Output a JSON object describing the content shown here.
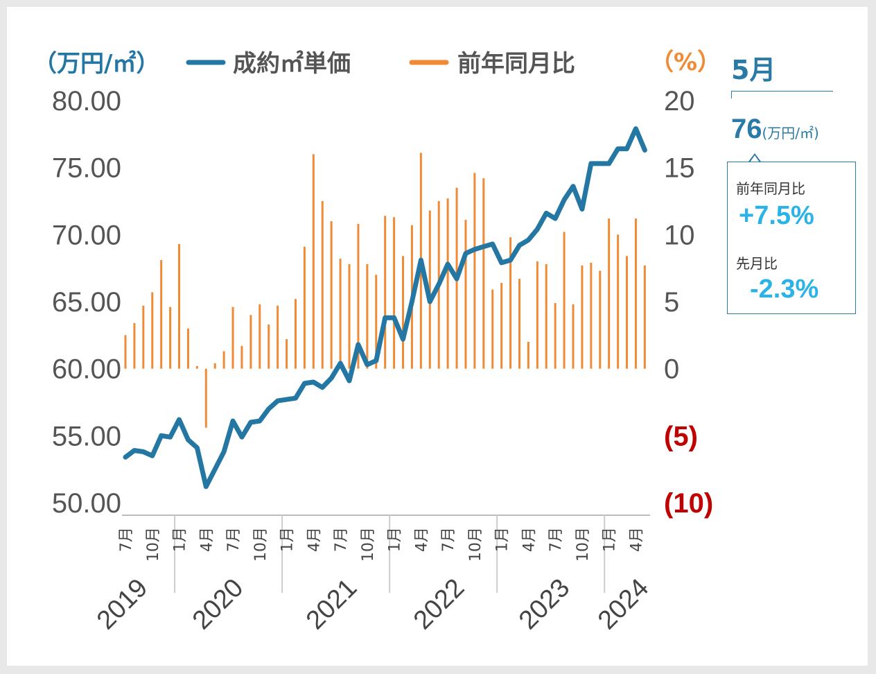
{
  "legend": {
    "left_unit": "（万円/㎡）",
    "line_label": "成約㎡単価",
    "bar_label": "前年同月比",
    "right_unit": "（%）"
  },
  "summary": {
    "month": "5月",
    "price_value": "76",
    "price_unit": "(万円/㎡)",
    "yoy_label": "前年同月比",
    "yoy_value": "+7.5%",
    "mom_label": "先月比",
    "mom_value": "-2.3%"
  },
  "colors": {
    "line": "#2577a3",
    "bar": "#f08a35",
    "negative_tick": "#c00000",
    "accent": "#2ab3e6"
  },
  "chart_data": {
    "type": "line+bar",
    "left_axis": {
      "ylim": [
        50,
        80
      ],
      "ticks": [
        "80.00",
        "75.00",
        "70.00",
        "65.00",
        "60.00",
        "55.00",
        "50.00"
      ]
    },
    "right_axis": {
      "ylim": [
        -10,
        20
      ],
      "ticks": [
        "20",
        "15",
        "10",
        "5",
        "0",
        "(5)",
        "(10)"
      ]
    },
    "month_ticks": [
      "7月",
      "10月",
      "1月",
      "4月",
      "7月",
      "10月",
      "1月",
      "4月",
      "7月",
      "10月",
      "1月",
      "4月",
      "7月",
      "10月",
      "1月",
      "4月",
      "7月",
      "10月",
      "1月",
      "4月"
    ],
    "years": [
      "2019",
      "2020",
      "2021",
      "2022",
      "2023",
      "2024"
    ],
    "series": [
      {
        "name": "成約㎡単価",
        "type": "line",
        "values": [
          53.4,
          53.9,
          53.8,
          53.5,
          55.0,
          54.9,
          56.2,
          54.7,
          54.1,
          51.2,
          52.5,
          53.8,
          56.1,
          54.9,
          56.0,
          56.1,
          57.0,
          57.6,
          57.7,
          57.8,
          58.9,
          59.0,
          58.6,
          59.3,
          60.4,
          59.1,
          61.8,
          60.3,
          60.6,
          63.8,
          63.8,
          62.2,
          65.0,
          68.1,
          65.0,
          66.3,
          67.8,
          66.7,
          68.6,
          68.9,
          69.1,
          69.3,
          67.9,
          68.1,
          69.2,
          69.6,
          70.4,
          71.6,
          71.2,
          72.6,
          73.6,
          71.9,
          75.3,
          75.3,
          75.3,
          76.4,
          76.4,
          77.9,
          76.3
        ]
      },
      {
        "name": "前年同月比",
        "type": "bar",
        "values": [
          2.5,
          3.4,
          4.7,
          5.7,
          8.1,
          4.6,
          9.3,
          3.0,
          0.2,
          -4.4,
          0.4,
          1.3,
          4.6,
          1.7,
          4.0,
          4.8,
          3.3,
          4.7,
          2.2,
          5.2,
          9.1,
          16.0,
          12.5,
          11.0,
          8.2,
          7.8,
          10.8,
          7.8,
          7.0,
          11.4,
          11.3,
          8.4,
          10.7,
          16.1,
          11.8,
          12.5,
          12.7,
          13.5,
          11.1,
          14.6,
          14.2,
          5.9,
          6.4,
          9.8,
          6.7,
          2.0,
          8.0,
          7.8,
          4.9,
          10.2,
          4.8,
          7.7,
          7.9,
          7.3,
          11.2,
          10.0,
          8.4,
          11.2,
          7.7
        ]
      }
    ]
  }
}
